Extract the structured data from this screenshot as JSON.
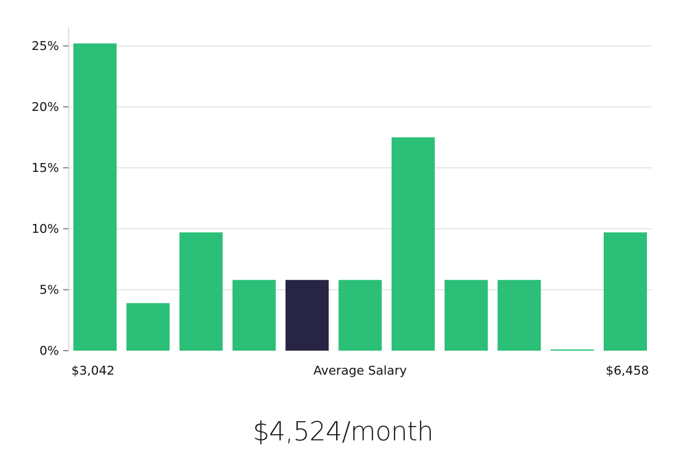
{
  "chart_data": {
    "type": "bar",
    "y_ticks": [
      "0%",
      "5%",
      "10%",
      "15%",
      "20%",
      "25%"
    ],
    "ylim": [
      0,
      26.5
    ],
    "grid": true,
    "values": [
      25.2,
      3.9,
      9.7,
      5.8,
      5.8,
      5.8,
      17.5,
      5.8,
      5.8,
      0.1,
      9.7
    ],
    "highlight_index": 4,
    "colors": {
      "bar": "#2bbf77",
      "highlight": "#272444",
      "grid": "#e2e2e2",
      "axis": "#cfcfcf"
    },
    "x_label_left": "$3,042",
    "x_label_center": "Average Salary",
    "x_label_right": "$6,458"
  },
  "headline": "$4,524/month"
}
